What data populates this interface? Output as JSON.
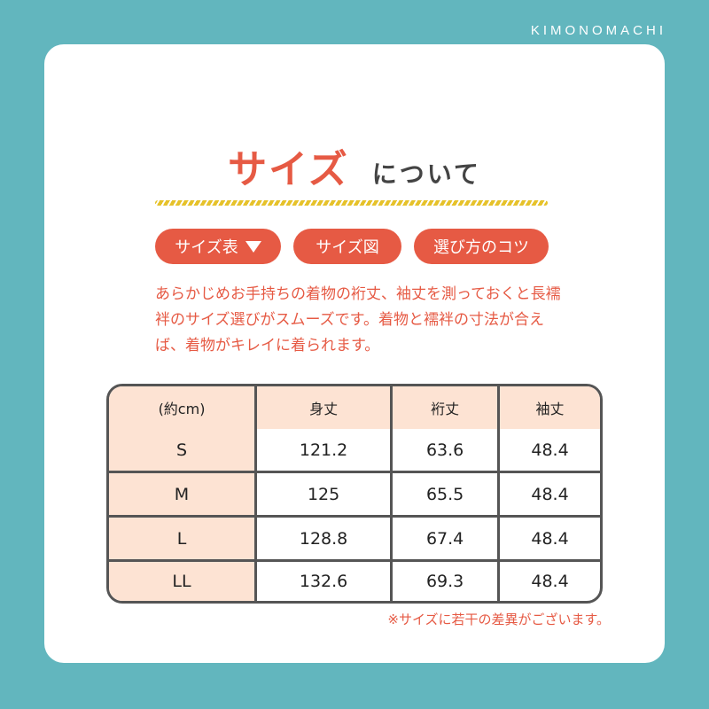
{
  "brand": "KIMONOMACHI",
  "title": {
    "main": "サイズ",
    "sub": "について"
  },
  "tabs": [
    {
      "label": "サイズ表",
      "icon": "triangle-down-icon"
    },
    {
      "label": "サイズ図"
    },
    {
      "label": "選び方のコツ"
    }
  ],
  "description": "あらかじめお手持ちの着物の裄丈、袖丈を測っておくと長襦袢のサイズ選びがスムーズです。着物と襦袢の寸法が合えば、着物がキレイに着られます。",
  "table": {
    "headers": [
      "(約cm)",
      "身丈",
      "裄丈",
      "袖丈"
    ],
    "rows": [
      [
        "S",
        "121.2",
        "63.6",
        "48.4"
      ],
      [
        "M",
        "125",
        "65.5",
        "48.4"
      ],
      [
        "L",
        "128.8",
        "67.4",
        "48.4"
      ],
      [
        "LL",
        "132.6",
        "69.3",
        "48.4"
      ]
    ]
  },
  "note": "※サイズに若干の差異がございます。",
  "colors": {
    "background": "#62b6be",
    "accent": "#e65a44",
    "header_fill": "#fde3d3",
    "rope": "#e6c22a"
  }
}
